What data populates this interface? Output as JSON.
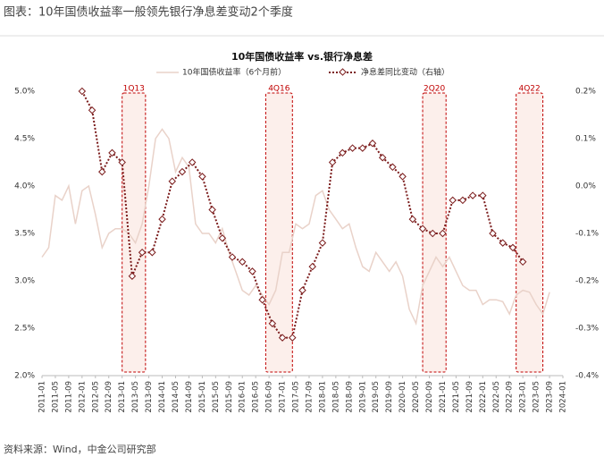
{
  "header": {
    "title": "图表：10年国债收益率一般领先银行净息差变动2个季度"
  },
  "chart_data": {
    "type": "line",
    "title": "10年国债收益率 vs.银行净息差",
    "xlim": [
      "2011-01",
      "2024-01"
    ],
    "xticks": [
      "2011-01",
      "2011-05",
      "2011-09",
      "2012-01",
      "2012-05",
      "2012-09",
      "2013-01",
      "2013-05",
      "2013-09",
      "2014-01",
      "2014-05",
      "2014-09",
      "2015-01",
      "2015-05",
      "2015-09",
      "2016-01",
      "2016-05",
      "2016-09",
      "2017-01",
      "2017-05",
      "2017-09",
      "2018-01",
      "2018-05",
      "2018-09",
      "2019-01",
      "2019-05",
      "2019-09",
      "2020-01",
      "2020-05",
      "2020-09",
      "2021-01",
      "2021-05",
      "2021-09",
      "2022-01",
      "2022-05",
      "2022-09",
      "2023-01",
      "2023-05",
      "2023-09",
      "2024-01"
    ],
    "ylim": [
      2.0,
      5.0
    ],
    "yticks": [
      {
        "value": 2.0,
        "label": "2.0%"
      },
      {
        "value": 2.5,
        "label": "2.5%"
      },
      {
        "value": 3.0,
        "label": "3.0%"
      },
      {
        "value": 3.5,
        "label": "3.5%"
      },
      {
        "value": 4.0,
        "label": "4.0%"
      },
      {
        "value": 4.5,
        "label": "4.5%"
      },
      {
        "value": 5.0,
        "label": "5.0%"
      }
    ],
    "y2lim": [
      -0.4,
      0.2
    ],
    "y2ticks": [
      {
        "value": -0.4,
        "label": "-0.4%"
      },
      {
        "value": -0.3,
        "label": "-0.3%"
      },
      {
        "value": -0.2,
        "label": "-0.2%"
      },
      {
        "value": -0.1,
        "label": "-0.1%"
      },
      {
        "value": 0.0,
        "label": "0.0%"
      },
      {
        "value": 0.1,
        "label": "0.1%"
      },
      {
        "value": 0.2,
        "label": "0.2%"
      }
    ],
    "series": [
      {
        "name": "10年国债收益率（6个月前）",
        "color": "#e9d2c9",
        "x": [
          "2011-01",
          "2011-03",
          "2011-05",
          "2011-07",
          "2011-09",
          "2011-11",
          "2012-01",
          "2012-03",
          "2012-05",
          "2012-07",
          "2012-09",
          "2012-11",
          "2013-01",
          "2013-03",
          "2013-05",
          "2013-07",
          "2013-09",
          "2013-11",
          "2014-01",
          "2014-03",
          "2014-05",
          "2014-07",
          "2014-09",
          "2014-11",
          "2015-01",
          "2015-03",
          "2015-05",
          "2015-07",
          "2015-09",
          "2015-11",
          "2016-01",
          "2016-03",
          "2016-05",
          "2016-07",
          "2016-09",
          "2016-11",
          "2017-01",
          "2017-03",
          "2017-05",
          "2017-07",
          "2017-09",
          "2017-11",
          "2018-01",
          "2018-03",
          "2018-05",
          "2018-07",
          "2018-09",
          "2018-11",
          "2019-01",
          "2019-03",
          "2019-05",
          "2019-07",
          "2019-09",
          "2019-11",
          "2020-01",
          "2020-03",
          "2020-05",
          "2020-07",
          "2020-09",
          "2020-11",
          "2021-01",
          "2021-03",
          "2021-05",
          "2021-07",
          "2021-09",
          "2021-11",
          "2022-01",
          "2022-03",
          "2022-05",
          "2022-07",
          "2022-09",
          "2022-11",
          "2023-01",
          "2023-03",
          "2023-05",
          "2023-07",
          "2023-09"
        ],
        "values": [
          3.25,
          3.35,
          3.9,
          3.85,
          4.0,
          3.6,
          3.95,
          4.0,
          3.7,
          3.35,
          3.5,
          3.55,
          3.55,
          3.5,
          3.4,
          3.6,
          4.0,
          4.5,
          4.6,
          4.5,
          4.15,
          4.3,
          4.2,
          3.6,
          3.5,
          3.5,
          3.4,
          3.55,
          3.3,
          3.1,
          2.9,
          2.85,
          2.95,
          2.85,
          2.75,
          2.9,
          3.3,
          3.3,
          3.6,
          3.55,
          3.6,
          3.9,
          3.95,
          3.75,
          3.65,
          3.55,
          3.6,
          3.35,
          3.15,
          3.1,
          3.3,
          3.2,
          3.1,
          3.2,
          3.05,
          2.7,
          2.55,
          2.95,
          3.1,
          3.25,
          3.15,
          3.25,
          3.1,
          2.95,
          2.9,
          2.9,
          2.75,
          2.8,
          2.8,
          2.78,
          2.65,
          2.85,
          2.9,
          2.88,
          2.75,
          2.65,
          2.88
        ]
      },
      {
        "name": "净息差同比变动（右轴）",
        "color": "#7b1c1c",
        "axis": "y2",
        "x": [
          "2012-01",
          "2012-04",
          "2012-07",
          "2012-10",
          "2013-01",
          "2013-04",
          "2013-07",
          "2013-10",
          "2014-01",
          "2014-04",
          "2014-07",
          "2014-10",
          "2015-01",
          "2015-04",
          "2015-07",
          "2015-10",
          "2016-01",
          "2016-04",
          "2016-07",
          "2016-10",
          "2017-01",
          "2017-04",
          "2017-07",
          "2017-10",
          "2018-01",
          "2018-04",
          "2018-07",
          "2018-10",
          "2019-01",
          "2019-04",
          "2019-07",
          "2019-10",
          "2020-01",
          "2020-04",
          "2020-07",
          "2020-10",
          "2021-01",
          "2021-04",
          "2021-07",
          "2021-10",
          "2022-01",
          "2022-04",
          "2022-07",
          "2022-10",
          "2023-01"
        ],
        "values": [
          0.2,
          0.16,
          0.03,
          0.07,
          0.05,
          -0.19,
          -0.14,
          -0.14,
          -0.07,
          0.01,
          0.03,
          0.05,
          0.02,
          -0.05,
          -0.11,
          -0.15,
          -0.16,
          -0.18,
          -0.24,
          -0.29,
          -0.32,
          -0.32,
          -0.22,
          -0.17,
          -0.12,
          0.05,
          0.07,
          0.08,
          0.08,
          0.09,
          0.06,
          0.04,
          0.02,
          -0.07,
          -0.09,
          -0.1,
          -0.1,
          -0.03,
          -0.03,
          -0.02,
          -0.02,
          -0.1,
          -0.12,
          -0.13,
          -0.16
        ]
      }
    ],
    "annotations": [
      {
        "label": "1Q13",
        "x": [
          "2013-01",
          "2013-08"
        ]
      },
      {
        "label": "4Q16",
        "x": [
          "2016-08",
          "2017-04"
        ]
      },
      {
        "label": "2Q20",
        "x": [
          "2020-07",
          "2021-02"
        ]
      },
      {
        "label": "4Q22",
        "x": [
          "2022-11",
          "2023-07"
        ]
      }
    ]
  },
  "source": "资料来源：Wind，中金公司研究部"
}
